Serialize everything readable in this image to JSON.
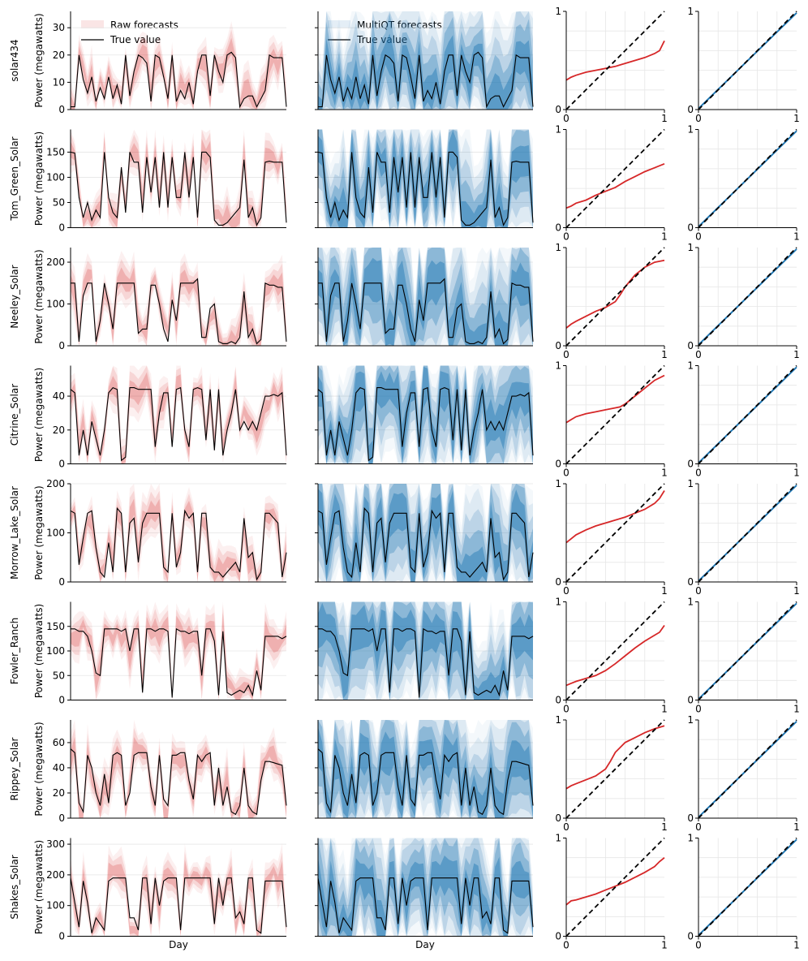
{
  "figure": {
    "col_headers": {
      "raw_legend": "Raw forecasts",
      "multiqt_legend": "MultiQT forecasts",
      "true_legend": "True value"
    },
    "xlabel": "Day",
    "ylabel": "Power (megawatts)",
    "colors": {
      "raw": "#d62728",
      "multiqt": "#1f77b4",
      "true": "#000000",
      "diagonal": "#000000",
      "grid": "#e6e6e6"
    }
  },
  "chart_data": [
    {
      "type": "area",
      "site": "solar434",
      "ylim": [
        0,
        36
      ],
      "yticks": [
        0,
        10,
        20,
        30
      ],
      "series": [
        {
          "name": "True value",
          "values": [
            1,
            1,
            20,
            11,
            6,
            12,
            3,
            8,
            4,
            12,
            4,
            9,
            2,
            20,
            5,
            14,
            20,
            19,
            17,
            3,
            20,
            19,
            12,
            4,
            20,
            3,
            7,
            4,
            10,
            2,
            14,
            20,
            20,
            5,
            20,
            14,
            10,
            20,
            21,
            19,
            1,
            4,
            5,
            5,
            1,
            4,
            7,
            20,
            19,
            19,
            19,
            1
          ]
        }
      ],
      "calibration_raw": [
        [
          0,
          0.3
        ],
        [
          0.05,
          0.33
        ],
        [
          0.1,
          0.35
        ],
        [
          0.2,
          0.38
        ],
        [
          0.3,
          0.4
        ],
        [
          0.4,
          0.42
        ],
        [
          0.5,
          0.44
        ],
        [
          0.6,
          0.47
        ],
        [
          0.7,
          0.5
        ],
        [
          0.8,
          0.53
        ],
        [
          0.9,
          0.57
        ],
        [
          0.95,
          0.6
        ],
        [
          0.98,
          0.66
        ],
        [
          1,
          0.7
        ]
      ]
    },
    {
      "type": "area",
      "site": "Tom_Green_Solar",
      "ylim": [
        0,
        195
      ],
      "yticks": [
        0,
        50,
        100,
        150
      ],
      "series": [
        {
          "name": "True value",
          "values": [
            150,
            148,
            60,
            20,
            50,
            15,
            35,
            20,
            150,
            60,
            30,
            20,
            120,
            30,
            150,
            130,
            130,
            30,
            140,
            70,
            140,
            40,
            150,
            40,
            140,
            60,
            60,
            150,
            60,
            140,
            20,
            150,
            150,
            140,
            15,
            5,
            5,
            10,
            20,
            30,
            40,
            135,
            20,
            40,
            5,
            20,
            130,
            132,
            130,
            130,
            130,
            10
          ]
        }
      ],
      "calibration_raw": [
        [
          0,
          0.2
        ],
        [
          0.05,
          0.22
        ],
        [
          0.1,
          0.25
        ],
        [
          0.2,
          0.28
        ],
        [
          0.3,
          0.33
        ],
        [
          0.4,
          0.37
        ],
        [
          0.5,
          0.41
        ],
        [
          0.6,
          0.47
        ],
        [
          0.7,
          0.52
        ],
        [
          0.8,
          0.57
        ],
        [
          0.9,
          0.61
        ],
        [
          1,
          0.65
        ]
      ]
    },
    {
      "type": "area",
      "site": "Neeley_Solar",
      "ylim": [
        0,
        235
      ],
      "yticks": [
        0,
        100,
        200
      ],
      "series": [
        {
          "name": "True value",
          "values": [
            150,
            150,
            10,
            120,
            150,
            150,
            10,
            60,
            150,
            100,
            40,
            150,
            150,
            150,
            150,
            150,
            30,
            40,
            40,
            145,
            145,
            100,
            40,
            10,
            110,
            60,
            150,
            150,
            150,
            150,
            160,
            20,
            20,
            90,
            100,
            10,
            5,
            5,
            10,
            5,
            20,
            130,
            20,
            40,
            5,
            15,
            150,
            145,
            145,
            140,
            140,
            10
          ]
        }
      ],
      "calibration_raw": [
        [
          0,
          0.18
        ],
        [
          0.05,
          0.22
        ],
        [
          0.1,
          0.25
        ],
        [
          0.2,
          0.3
        ],
        [
          0.3,
          0.35
        ],
        [
          0.4,
          0.39
        ],
        [
          0.5,
          0.45
        ],
        [
          0.55,
          0.52
        ],
        [
          0.6,
          0.6
        ],
        [
          0.7,
          0.72
        ],
        [
          0.8,
          0.8
        ],
        [
          0.9,
          0.85
        ],
        [
          1,
          0.87
        ]
      ]
    },
    {
      "type": "area",
      "site": "Citrine_Solar",
      "ylim": [
        0,
        58
      ],
      "yticks": [
        0,
        20,
        40
      ],
      "series": [
        {
          "name": "True value",
          "values": [
            44,
            42,
            5,
            20,
            5,
            25,
            15,
            5,
            20,
            42,
            45,
            44,
            2,
            4,
            45,
            45,
            44,
            44,
            44,
            44,
            10,
            30,
            42,
            42,
            10,
            44,
            45,
            20,
            10,
            44,
            45,
            44,
            14,
            44,
            8,
            44,
            5,
            20,
            30,
            44,
            20,
            25,
            20,
            25,
            20,
            30,
            40,
            40,
            41,
            40,
            42,
            5
          ]
        }
      ],
      "calibration_raw": [
        [
          0,
          0.42
        ],
        [
          0.05,
          0.45
        ],
        [
          0.1,
          0.48
        ],
        [
          0.2,
          0.51
        ],
        [
          0.3,
          0.53
        ],
        [
          0.4,
          0.55
        ],
        [
          0.5,
          0.57
        ],
        [
          0.55,
          0.58
        ],
        [
          0.6,
          0.61
        ],
        [
          0.7,
          0.69
        ],
        [
          0.8,
          0.77
        ],
        [
          0.9,
          0.85
        ],
        [
          1,
          0.9
        ]
      ]
    },
    {
      "type": "area",
      "site": "Morrow_Lake_Solar",
      "ylim": [
        0,
        200
      ],
      "yticks": [
        0,
        100,
        200
      ],
      "series": [
        {
          "name": "True value",
          "values": [
            145,
            140,
            35,
            90,
            140,
            145,
            70,
            20,
            10,
            80,
            20,
            150,
            140,
            20,
            120,
            130,
            40,
            120,
            140,
            140,
            140,
            140,
            30,
            20,
            140,
            30,
            60,
            145,
            130,
            140,
            20,
            140,
            140,
            30,
            20,
            20,
            10,
            20,
            30,
            40,
            20,
            130,
            50,
            60,
            5,
            20,
            140,
            140,
            130,
            120,
            10,
            60
          ]
        }
      ],
      "calibration_raw": [
        [
          0,
          0.4
        ],
        [
          0.05,
          0.44
        ],
        [
          0.1,
          0.48
        ],
        [
          0.2,
          0.53
        ],
        [
          0.3,
          0.57
        ],
        [
          0.4,
          0.6
        ],
        [
          0.5,
          0.63
        ],
        [
          0.6,
          0.66
        ],
        [
          0.7,
          0.7
        ],
        [
          0.8,
          0.74
        ],
        [
          0.9,
          0.8
        ],
        [
          0.95,
          0.85
        ],
        [
          1,
          0.93
        ]
      ]
    },
    {
      "type": "area",
      "site": "Fowler_Ranch",
      "ylim": [
        0,
        200
      ],
      "yticks": [
        0,
        50,
        100,
        150
      ],
      "series": [
        {
          "name": "True value",
          "values": [
            145,
            145,
            140,
            140,
            130,
            100,
            55,
            50,
            145,
            145,
            145,
            145,
            140,
            145,
            100,
            145,
            145,
            15,
            145,
            145,
            140,
            145,
            145,
            140,
            5,
            145,
            140,
            140,
            135,
            140,
            140,
            50,
            145,
            145,
            120,
            10,
            140,
            15,
            10,
            15,
            20,
            15,
            30,
            10,
            60,
            20,
            130,
            130,
            130,
            130,
            125,
            130
          ]
        }
      ],
      "calibration_raw": [
        [
          0,
          0.15
        ],
        [
          0.05,
          0.17
        ],
        [
          0.1,
          0.19
        ],
        [
          0.2,
          0.22
        ],
        [
          0.3,
          0.25
        ],
        [
          0.4,
          0.3
        ],
        [
          0.5,
          0.37
        ],
        [
          0.6,
          0.45
        ],
        [
          0.7,
          0.53
        ],
        [
          0.8,
          0.6
        ],
        [
          0.9,
          0.66
        ],
        [
          0.95,
          0.69
        ],
        [
          1,
          0.76
        ]
      ]
    },
    {
      "type": "area",
      "site": "Rippey_Solar",
      "ylim": [
        0,
        78
      ],
      "yticks": [
        0,
        20,
        40,
        60
      ],
      "series": [
        {
          "name": "True value",
          "values": [
            55,
            52,
            12,
            5,
            50,
            40,
            20,
            10,
            35,
            12,
            50,
            52,
            50,
            10,
            20,
            50,
            52,
            52,
            52,
            25,
            10,
            50,
            15,
            10,
            50,
            50,
            52,
            52,
            30,
            15,
            50,
            45,
            50,
            52,
            10,
            40,
            10,
            25,
            5,
            3,
            10,
            40,
            10,
            5,
            3,
            30,
            45,
            45,
            44,
            43,
            42,
            10
          ]
        }
      ],
      "calibration_raw": [
        [
          0,
          0.3
        ],
        [
          0.05,
          0.33
        ],
        [
          0.1,
          0.35
        ],
        [
          0.2,
          0.39
        ],
        [
          0.3,
          0.43
        ],
        [
          0.4,
          0.5
        ],
        [
          0.45,
          0.58
        ],
        [
          0.5,
          0.67
        ],
        [
          0.55,
          0.72
        ],
        [
          0.6,
          0.77
        ],
        [
          0.7,
          0.82
        ],
        [
          0.8,
          0.87
        ],
        [
          0.9,
          0.91
        ],
        [
          1,
          0.94
        ]
      ]
    },
    {
      "type": "area",
      "site": "Shakes_Solar",
      "ylim": [
        0,
        320
      ],
      "yticks": [
        0,
        100,
        200,
        300
      ],
      "series": [
        {
          "name": "True value",
          "values": [
            190,
            110,
            30,
            180,
            110,
            10,
            60,
            40,
            20,
            180,
            190,
            190,
            190,
            190,
            60,
            60,
            20,
            190,
            190,
            40,
            190,
            100,
            180,
            190,
            190,
            190,
            20,
            190,
            190,
            190,
            190,
            190,
            190,
            190,
            40,
            190,
            100,
            190,
            190,
            60,
            80,
            40,
            190,
            190,
            20,
            10,
            180,
            180,
            180,
            180,
            180,
            30
          ]
        }
      ],
      "calibration_raw": [
        [
          0,
          0.32
        ],
        [
          0.05,
          0.36
        ],
        [
          0.1,
          0.37
        ],
        [
          0.2,
          0.4
        ],
        [
          0.3,
          0.43
        ],
        [
          0.4,
          0.47
        ],
        [
          0.5,
          0.51
        ],
        [
          0.6,
          0.55
        ],
        [
          0.7,
          0.6
        ],
        [
          0.8,
          0.65
        ],
        [
          0.9,
          0.71
        ],
        [
          0.95,
          0.76
        ],
        [
          1,
          0.8
        ]
      ]
    }
  ]
}
